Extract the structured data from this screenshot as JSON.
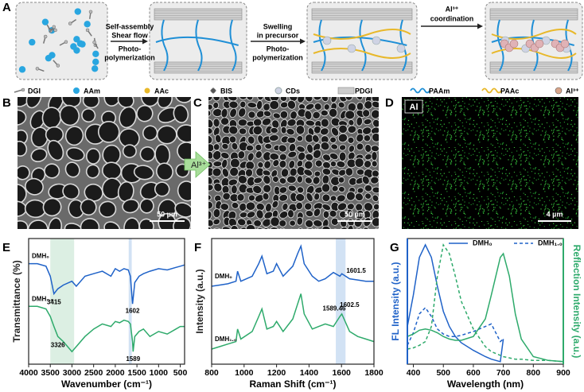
{
  "panel_labels": [
    "A",
    "B",
    "C",
    "D",
    "E",
    "F",
    "G"
  ],
  "schematic": {
    "step1": [
      "Self-assembly",
      "Shear flow",
      "Photo-",
      "polymerization"
    ],
    "step2": [
      "Swelling",
      "in precursor",
      "Photo-",
      "polymerization"
    ],
    "step3": [
      "Al³⁺",
      "coordination"
    ],
    "legend": [
      "DGI",
      "AAm",
      "AAc",
      "BIS",
      "CDs",
      "PDGI",
      "PAAm",
      "PAAc",
      "Al³⁺"
    ]
  },
  "images": {
    "transition": "Al³⁺",
    "B_scale": "50 µm",
    "C_scale": "50 µm",
    "D_element": "Al",
    "D_scale": "4 µm"
  },
  "chart_data": [
    {
      "type": "line",
      "xlabel": "Wavenumber (cm⁻¹)",
      "ylabel": "Transmittance (%)",
      "x": [
        4000,
        3800,
        3600,
        3500,
        3415,
        3326,
        3200,
        3000,
        2900,
        2700,
        2500,
        2300,
        2100,
        2000,
        1900,
        1800,
        1700,
        1650,
        1602,
        1589,
        1550,
        1450,
        1350,
        1200,
        1000,
        800,
        600,
        500,
        400
      ],
      "xlim": [
        4000,
        400
      ],
      "xticks": [
        4000,
        3500,
        3000,
        2500,
        2000,
        1500,
        1000,
        500
      ],
      "ylim": [
        0,
        1
      ],
      "bands": [
        {
          "from": 3500,
          "to": 2950,
          "color": "#dcefe3"
        },
        {
          "from": 1690,
          "to": 1620,
          "color": "#d2e2f4"
        }
      ],
      "series": [
        {
          "name": "DMH₀",
          "color": "#1f62c8",
          "values": [
            0.8,
            0.8,
            0.78,
            0.7,
            0.56,
            0.6,
            0.63,
            0.66,
            0.62,
            0.7,
            0.72,
            0.74,
            0.7,
            0.76,
            0.74,
            0.76,
            0.75,
            0.7,
            0.48,
            0.52,
            0.65,
            0.7,
            0.72,
            0.74,
            0.76,
            0.75,
            0.77,
            0.78,
            0.79
          ]
        },
        {
          "name": "DMH₁.₀",
          "color": "#2eaa6b",
          "values": [
            0.46,
            0.46,
            0.44,
            0.38,
            0.3,
            0.22,
            0.18,
            0.1,
            0.14,
            0.22,
            0.28,
            0.32,
            0.3,
            0.34,
            0.33,
            0.35,
            0.34,
            0.32,
            0.18,
            0.1,
            0.22,
            0.26,
            0.28,
            0.22,
            0.26,
            0.24,
            0.28,
            0.3,
            0.3
          ]
        }
      ],
      "annotations": [
        {
          "x": 3415,
          "y": 0.49,
          "text": "3415"
        },
        {
          "x": 1602,
          "y": 0.42,
          "text": "1602"
        },
        {
          "x": 3326,
          "y": 0.15,
          "text": "3326"
        },
        {
          "x": 1589,
          "y": 0.04,
          "text": "1589"
        }
      ]
    },
    {
      "type": "line",
      "xlabel": "Raman Shift (cm⁻¹)",
      "ylabel": "Intensity (a.u.)",
      "x": [
        800,
        850,
        900,
        950,
        960,
        980,
        1050,
        1090,
        1110,
        1140,
        1180,
        1200,
        1240,
        1300,
        1330,
        1350,
        1370,
        1420,
        1460,
        1500,
        1550,
        1590,
        1602,
        1650,
        1700,
        1750,
        1800
      ],
      "xlim": [
        800,
        1800
      ],
      "xticks": [
        800,
        1000,
        1200,
        1400,
        1600,
        1800
      ],
      "ylim": [
        0,
        1
      ],
      "bands": [
        {
          "from": 1565,
          "to": 1625,
          "color": "#d2e2f4"
        }
      ],
      "series": [
        {
          "name": "DMH₀",
          "color": "#1f62c8",
          "values": [
            0.62,
            0.63,
            0.64,
            0.66,
            0.74,
            0.66,
            0.7,
            0.8,
            0.86,
            0.72,
            0.74,
            0.8,
            0.7,
            0.78,
            0.88,
            0.94,
            0.8,
            0.7,
            0.66,
            0.68,
            0.73,
            0.7,
            0.72,
            0.68,
            0.67,
            0.66,
            0.66
          ]
        },
        {
          "name": "DMH₁.₀",
          "color": "#2eaa6b",
          "values": [
            0.12,
            0.14,
            0.16,
            0.18,
            0.28,
            0.2,
            0.26,
            0.38,
            0.44,
            0.28,
            0.3,
            0.34,
            0.26,
            0.36,
            0.48,
            0.56,
            0.4,
            0.28,
            0.3,
            0.32,
            0.3,
            0.38,
            0.4,
            0.26,
            0.22,
            0.2,
            0.18
          ]
        }
      ],
      "annotations": [
        {
          "x": 1690,
          "y": 0.74,
          "text": "1601.5"
        },
        {
          "x": 1555,
          "y": 0.44,
          "text": "1589.46"
        },
        {
          "x": 1650,
          "y": 0.47,
          "text": "1602.5"
        }
      ]
    },
    {
      "type": "line",
      "xlabel": "Wavelength (nm)",
      "ylabel": "FL Intensity (a.u.)",
      "y2label": "Reflection Intensity (a.u.)",
      "x": [
        380,
        400,
        420,
        440,
        460,
        480,
        500,
        520,
        540,
        560,
        600,
        640,
        660,
        690,
        700,
        720,
        740,
        760,
        800,
        850,
        900
      ],
      "xlim": [
        380,
        900
      ],
      "xticks": [
        400,
        500,
        600,
        700,
        800,
        900
      ],
      "ylim": [
        0,
        1
      ],
      "y2lim": [
        0,
        1
      ],
      "legend": [
        {
          "name": "DMH₀",
          "dash": false
        },
        {
          "name": "DMH₁.₀",
          "dash": true
        }
      ],
      "series": [
        {
          "color": "#1f62c8",
          "dash": false,
          "values": [
            0.3,
            0.55,
            0.85,
            0.95,
            0.85,
            0.62,
            0.42,
            0.3,
            0.22,
            0.17,
            0.11,
            0.06,
            0.04,
            0.02,
            0.2,
            null,
            null,
            null,
            null,
            null,
            null
          ]
        },
        {
          "color": "#1f62c8",
          "dash": true,
          "values": [
            0.15,
            0.25,
            0.4,
            0.45,
            0.38,
            0.28,
            0.24,
            0.22,
            0.22,
            0.23,
            0.26,
            0.3,
            0.32,
            0.18,
            0.2,
            null,
            null,
            null,
            null,
            null,
            null
          ]
        },
        {
          "color": "#2eaa6b",
          "dash": false,
          "axis": "y2",
          "values": [
            0.22,
            0.24,
            0.27,
            0.28,
            0.27,
            0.25,
            0.22,
            0.2,
            0.19,
            0.19,
            0.22,
            0.36,
            0.55,
            0.85,
            0.88,
            0.7,
            0.4,
            0.2,
            0.06,
            0.03,
            0.02
          ]
        },
        {
          "color": "#2eaa6b",
          "dash": true,
          "axis": "y2",
          "values": [
            0.12,
            0.13,
            0.15,
            0.18,
            0.3,
            0.7,
            0.95,
            0.88,
            0.7,
            0.5,
            0.28,
            0.14,
            0.1,
            0.07,
            0.06,
            0.05,
            0.04,
            0.04,
            0.03,
            0.03,
            0.02
          ]
        }
      ]
    }
  ]
}
